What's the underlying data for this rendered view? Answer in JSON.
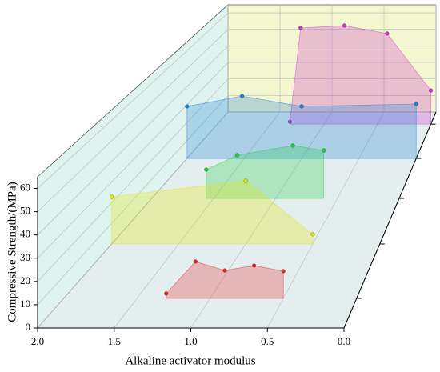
{
  "chart_data": {
    "type": "waterfall3d",
    "xlabel": "Alkaline activator modulus",
    "zlabel": "Compressive Strength/(MPa)",
    "xlim": [
      2.0,
      0.0
    ],
    "xticks": [
      {
        "value": 2.0,
        "label": "2.0"
      },
      1.5,
      {
        "value": 1.0,
        "label": "1.0"
      },
      0.5,
      {
        "value": 0.0,
        "label": "0.0"
      }
    ],
    "zlim": [
      0,
      65
    ],
    "zticks": [
      0,
      10,
      20,
      30,
      40,
      50,
      60
    ],
    "grid": true,
    "series": [
      {
        "color": "#e8282c",
        "x": [
          1.3,
          1.1,
          0.9,
          0.7,
          0.5
        ],
        "values": [
          2.2,
          16.5,
          12.5,
          14.7,
          12.2
        ]
      },
      {
        "color": "#e6e600",
        "x": [
          2.0,
          1.0,
          0.5
        ],
        "values": [
          22.9,
          30.6,
          4.7
        ]
      },
      {
        "color": "#22cc44",
        "x": [
          1.56,
          1.31,
          0.86,
          0.61
        ],
        "values": [
          15,
          22.5,
          27.5,
          25
        ]
      },
      {
        "color": "#1a80d8",
        "x": [
          2.0,
          1.52,
          1.0,
          0.0
        ],
        "values": [
          29,
          34.7,
          29,
          30.3
        ]
      },
      {
        "color": "#cc33cc",
        "x": [
          1.32,
          1.22,
          0.81,
          0.41,
          0.0
        ],
        "values": [
          1.4,
          56.9,
          58.3,
          53.6,
          19.9
        ]
      }
    ]
  }
}
